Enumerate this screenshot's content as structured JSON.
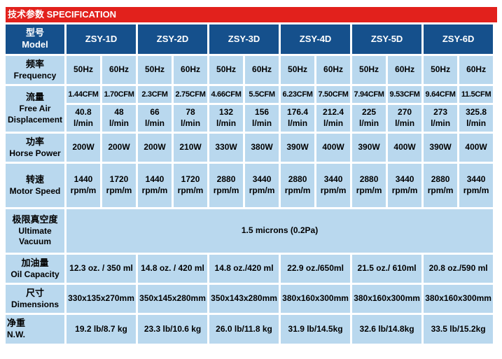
{
  "title": {
    "zh": "技术参数",
    "en": "SPECIFICATION"
  },
  "colors": {
    "bar_red": "#e2211c",
    "header_blue": "#15508c",
    "cell_blue": "#b9d8ee"
  },
  "table": {
    "model": {
      "zh": "型号",
      "en": "Model"
    },
    "models": [
      "ZSY-1D",
      "ZSY-2D",
      "ZSY-3D",
      "ZSY-4D",
      "ZSY-5D",
      "ZSY-6D"
    ],
    "frequency": {
      "zh": "频率",
      "en": "Frequency",
      "values": [
        "50Hz",
        "60Hz",
        "50Hz",
        "60Hz",
        "50Hz",
        "60Hz",
        "50Hz",
        "60Hz",
        "50Hz",
        "60Hz",
        "50Hz",
        "60Hz"
      ]
    },
    "flow": {
      "zh": "流量",
      "en_line1": "Free Air",
      "en_line2": "Displacement",
      "cfm": [
        "1.44CFM",
        "1.70CFM",
        "2.3CFM",
        "2.75CFM",
        "4.66CFM",
        "5.5CFM",
        "6.23CFM",
        "7.50CFM",
        "7.94CFM",
        "9.53CFM",
        "9.64CFM",
        "11.5CFM"
      ],
      "lmin": [
        "40.8",
        "48",
        "66",
        "78",
        "132",
        "156",
        "176.4",
        "212.4",
        "225",
        "270",
        "273",
        "325.8"
      ],
      "lmin_unit": "l/min"
    },
    "horse_power": {
      "zh": "功率",
      "en": "Horse Power",
      "values": [
        "200W",
        "200W",
        "200W",
        "210W",
        "330W",
        "380W",
        "390W",
        "400W",
        "390W",
        "400W",
        "390W",
        "400W"
      ]
    },
    "motor_speed": {
      "zh": "转速",
      "en": "Motor Speed",
      "values": [
        "1440",
        "1720",
        "1440",
        "1720",
        "2880",
        "3440",
        "2880",
        "3440",
        "2880",
        "3440",
        "2880",
        "3440"
      ],
      "unit": "rpm/m"
    },
    "vacuum": {
      "zh": "极限真空度",
      "en_line1": "Ultimate",
      "en_line2": "Vacuum",
      "value": "1.5 microns (0.2Pa)"
    },
    "oil": {
      "zh": "加油量",
      "en": "Oil Capacity",
      "values": [
        "12.3 oz. / 350 ml",
        "14.8 oz. / 420 ml",
        "14.8 oz./420 ml",
        "22.9 oz./650ml",
        "21.5 oz./ 610ml",
        "20.8 oz./590 ml"
      ]
    },
    "dimensions": {
      "zh": "尺寸",
      "en": "Dimensions",
      "values": [
        "330x135x270mm",
        "350x145x280mm",
        "350x143x280mm",
        "380x160x300mm",
        "380x160x300mm",
        "380x160x300mm"
      ]
    },
    "net_weight": {
      "zh": "净重",
      "en": "N.W.",
      "values": [
        "19.2 lb/8.7 kg",
        "23.3 lb/10.6 kg",
        "26.0 lb/11.8 kg",
        "31.9 lb/14.5kg",
        "32.6 lb/14.8kg",
        "33.5 lb/15.2kg"
      ]
    }
  }
}
